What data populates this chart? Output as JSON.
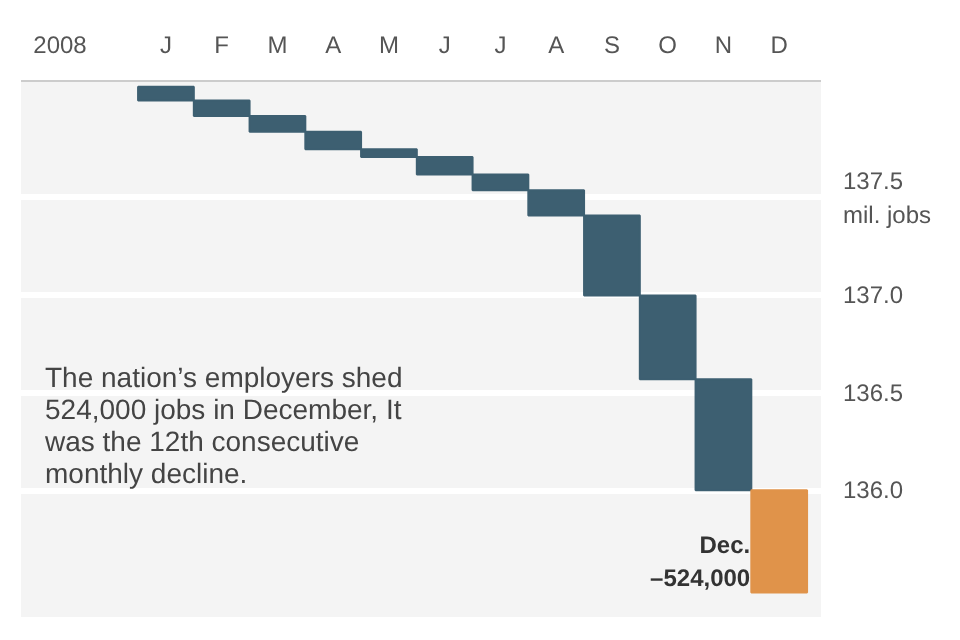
{
  "chart_data": {
    "type": "bar",
    "xlabel": "2008",
    "categories": [
      "J",
      "F",
      "M",
      "A",
      "M",
      "J",
      "J",
      "A",
      "S",
      "O",
      "N",
      "D"
    ],
    "base": [
      138.07,
      138.0,
      137.92,
      137.84,
      137.75,
      137.71,
      137.62,
      137.54,
      137.41,
      137.0,
      136.57,
      136.0
    ],
    "values": [
      -0.07,
      -0.08,
      -0.08,
      -0.09,
      -0.04,
      -0.09,
      -0.08,
      -0.13,
      -0.41,
      -0.43,
      -0.57,
      -0.524
    ],
    "colors": [
      "#3d5f71",
      "#3d5f71",
      "#3d5f71",
      "#3d5f71",
      "#3d5f71",
      "#3d5f71",
      "#3d5f71",
      "#3d5f71",
      "#3d5f71",
      "#3d5f71",
      "#3d5f71",
      "#e0934a"
    ],
    "annotations": [
      "The nation’s employers shed\n524,000 jobs in December, It\nwas the 12th consecutive\nmonthly decline.",
      {
        "text": "Dec.\n–524,000",
        "x": "D",
        "y": 135.476
      }
    ],
    "ylim": [
      135.35,
      138.1
    ],
    "yticks": [
      {
        "value": 136,
        "label": "136.0"
      },
      {
        "value": 136.5,
        "label": "136.5"
      },
      {
        "value": 137,
        "label": "137.0"
      },
      {
        "value": 137.5,
        "label": "137.5\nmil. jobs"
      }
    ],
    "grid": "y"
  }
}
